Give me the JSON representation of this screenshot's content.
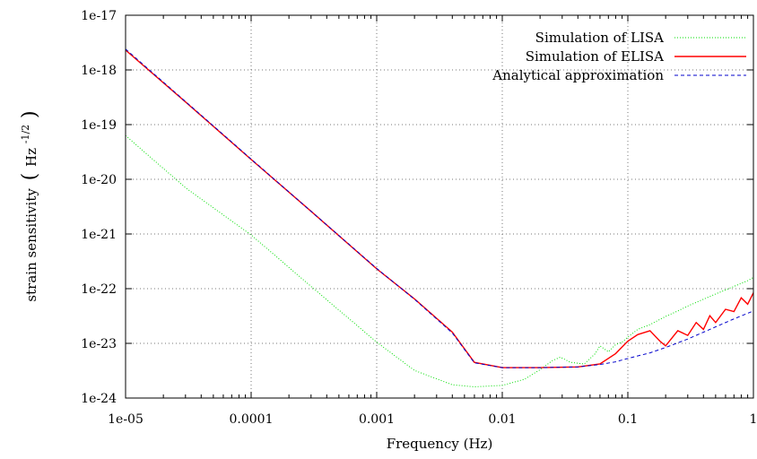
{
  "chart_data": {
    "type": "line",
    "title": "",
    "xlabel": "Frequency (Hz)",
    "ylabel_main": "strain sensitivity",
    "ylabel_unit_base": "Hz",
    "ylabel_unit_exp": "-1/2",
    "xscale": "log",
    "yscale": "log",
    "xlim": [
      1e-05,
      1
    ],
    "ylim": [
      1e-24,
      1e-17
    ],
    "grid": true,
    "legend_position": "top-right",
    "x_ticks": [
      {
        "value": 1e-05,
        "label": "1e-05"
      },
      {
        "value": 0.0001,
        "label": "0.0001"
      },
      {
        "value": 0.001,
        "label": "0.001"
      },
      {
        "value": 0.01,
        "label": "0.01"
      },
      {
        "value": 0.1,
        "label": "0.1"
      },
      {
        "value": 1,
        "label": "1"
      }
    ],
    "y_ticks": [
      {
        "value": 1e-24,
        "label": "1e-24"
      },
      {
        "value": 1e-23,
        "label": "1e-23"
      },
      {
        "value": 1e-22,
        "label": "1e-22"
      },
      {
        "value": 1e-21,
        "label": "1e-21"
      },
      {
        "value": 1e-20,
        "label": "1e-20"
      },
      {
        "value": 1e-19,
        "label": "1e-19"
      },
      {
        "value": 1e-18,
        "label": "1e-18"
      },
      {
        "value": 1e-17,
        "label": "1e-17"
      }
    ],
    "series": [
      {
        "name": "Simulation of LISA",
        "color": "#00dd00",
        "style": "dotted",
        "x": [
          1e-05,
          3e-05,
          0.0001,
          0.0003,
          0.001,
          0.002,
          0.004,
          0.006,
          0.01,
          0.015,
          0.02,
          0.025,
          0.029,
          0.035,
          0.045,
          0.055,
          0.06,
          0.07,
          0.08,
          0.09,
          0.1,
          0.12,
          0.15,
          0.2,
          0.25,
          0.3,
          0.4,
          0.5,
          0.6,
          0.7,
          0.8,
          0.9,
          1
        ],
        "y": [
          6.3e-20,
          7e-21,
          9.6e-22,
          1.1e-22,
          1.05e-23,
          3.2e-24,
          1.75e-24,
          1.6e-24,
          1.7e-24,
          2.2e-24,
          3.3e-24,
          4.8e-24,
          5.6e-24,
          4.5e-24,
          4.2e-24,
          6.5e-24,
          9e-24,
          7e-24,
          9.5e-24,
          1.05e-23,
          1.3e-23,
          1.8e-23,
          2.2e-23,
          3.1e-23,
          3.9e-23,
          4.8e-23,
          6.4e-23,
          8e-23,
          9.5e-23,
          1.1e-22,
          1.25e-22,
          1.4e-22,
          1.6e-22
        ]
      },
      {
        "name": "Simulation of ELISA",
        "color": "#ff0000",
        "style": "solid",
        "x": [
          1e-05,
          3e-05,
          0.0001,
          0.0003,
          0.001,
          0.002,
          0.004,
          0.006,
          0.01,
          0.02,
          0.04,
          0.06,
          0.08,
          0.1,
          0.12,
          0.15,
          0.18,
          0.2,
          0.25,
          0.3,
          0.35,
          0.4,
          0.45,
          0.5,
          0.6,
          0.7,
          0.8,
          0.9,
          1
        ],
        "y": [
          2.3e-18,
          2.6e-19,
          2.3e-20,
          2.6e-21,
          2.3e-22,
          6.5e-23,
          1.6e-23,
          4.5e-24,
          3.6e-24,
          3.6e-24,
          3.7e-24,
          4.2e-24,
          6.5e-24,
          1.1e-23,
          1.45e-23,
          1.7e-23,
          1.1e-23,
          9e-24,
          1.7e-23,
          1.4e-23,
          2.4e-23,
          1.8e-23,
          3.2e-23,
          2.4e-23,
          4.2e-23,
          3.8e-23,
          6.8e-23,
          5.2e-23,
          8.4e-23
        ]
      },
      {
        "name": "Analytical approximation",
        "color": "#0000cc",
        "style": "dashed",
        "x": [
          1e-05,
          3e-05,
          0.0001,
          0.0003,
          0.001,
          0.002,
          0.004,
          0.006,
          0.01,
          0.02,
          0.04,
          0.06,
          0.08,
          0.1,
          0.15,
          0.2,
          0.3,
          0.5,
          0.7,
          1
        ],
        "y": [
          2.4e-18,
          2.65e-19,
          2.35e-20,
          2.6e-21,
          2.35e-22,
          6.4e-23,
          1.55e-23,
          4.4e-24,
          3.6e-24,
          3.6e-24,
          3.7e-24,
          4.1e-24,
          4.6e-24,
          5.3e-24,
          6.7e-24,
          8.4e-24,
          1.2e-23,
          2e-23,
          2.8e-23,
          3.9e-23
        ]
      }
    ]
  }
}
